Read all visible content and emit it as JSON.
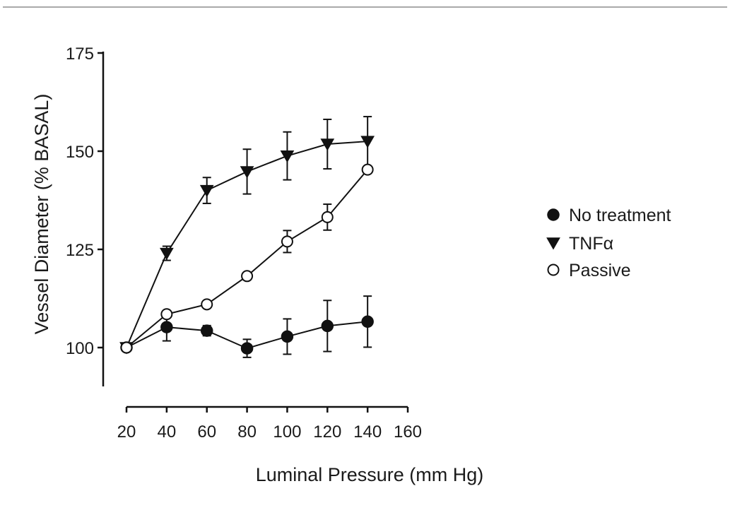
{
  "chart_data": {
    "type": "line",
    "xlabel": "Luminal Pressure (mm Hg)",
    "ylabel": "Vessel Diameter (% BASAL)",
    "xlim": [
      20,
      160
    ],
    "ylim": [
      90,
      175
    ],
    "x_ticks": [
      "20",
      "40",
      "60",
      "80",
      "100",
      "120",
      "140",
      "160"
    ],
    "y_ticks": [
      "100",
      "125",
      "150",
      "175"
    ],
    "grid": false,
    "legend_position": "right",
    "series": [
      {
        "name": "No treatment",
        "marker": "filled-circle",
        "x": [
          20,
          40,
          60,
          80,
          100,
          120,
          140
        ],
        "values": [
          100,
          105.2,
          104.3,
          99.8,
          102.8,
          105.5,
          106.6
        ],
        "errors": [
          0,
          3.5,
          1.3,
          2.3,
          4.5,
          6.5,
          6.5
        ]
      },
      {
        "name": "TNFα",
        "marker": "filled-triangle-down",
        "x": [
          20,
          40,
          60,
          80,
          100,
          120,
          140
        ],
        "values": [
          100,
          124,
          140,
          144.8,
          148.8,
          151.8,
          152.5
        ],
        "errors": [
          0,
          1.8,
          3.3,
          5.7,
          6.1,
          6.3,
          6.3
        ]
      },
      {
        "name": "Passive",
        "marker": "open-circle",
        "x": [
          20,
          40,
          60,
          80,
          100,
          120,
          140
        ],
        "values": [
          100,
          108.5,
          111,
          118.2,
          127,
          133.2,
          145.3
        ],
        "errors": [
          0,
          0,
          0,
          0,
          2.8,
          3.3,
          0
        ]
      }
    ]
  }
}
